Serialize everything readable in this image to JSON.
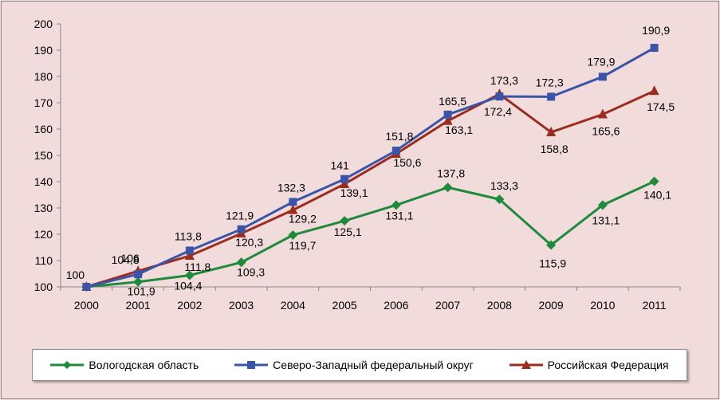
{
  "chart_data": {
    "type": "line",
    "x": [
      "2000",
      "2001",
      "2002",
      "2003",
      "2004",
      "2005",
      "2006",
      "2007",
      "2008",
      "2009",
      "2010",
      "2011"
    ],
    "ylim": [
      100,
      200
    ],
    "yticks": [
      100,
      110,
      120,
      130,
      140,
      150,
      160,
      170,
      180,
      190,
      200
    ],
    "grid": false,
    "legend_position": "bottom",
    "series": [
      {
        "name": "Вологодская область",
        "color": "#1e8a3c",
        "marker": "diamond",
        "values": [
          100,
          101.9,
          104.4,
          109.3,
          119.7,
          125.1,
          131.1,
          137.8,
          133.3,
          115.9,
          131.1,
          140.1
        ],
        "labels": [
          "",
          "101,9",
          "104,4",
          "109,3",
          "119,7",
          "125,1",
          "131,1",
          "137,8",
          "133,3",
          "115,9",
          "131,1",
          "140,1"
        ]
      },
      {
        "name": "Северо-Западный федеральный округ",
        "color": "#3a55a8",
        "marker": "square",
        "values": [
          100,
          104.8,
          113.8,
          121.9,
          132.3,
          141,
          151.8,
          165.5,
          172.4,
          172.3,
          179.9,
          190.9
        ],
        "labels": [
          "100",
          "104,8",
          "113,8",
          "121,9",
          "132,3",
          "141",
          "151,8",
          "165,5",
          "172,4",
          "172,3",
          "179,9",
          "190,9"
        ]
      },
      {
        "name": "Российская Федерация",
        "color": "#9b2d1f",
        "marker": "triangle",
        "values": [
          100,
          106,
          111.8,
          120.3,
          129.2,
          139.1,
          150.6,
          163.1,
          173.3,
          158.8,
          165.6,
          174.5
        ],
        "labels": [
          "",
          "106",
          "111,8",
          "120,3",
          "129,2",
          "139,1",
          "150,6",
          "163,1",
          "173,3",
          "158,8",
          "165,6",
          "174,5"
        ]
      }
    ]
  }
}
